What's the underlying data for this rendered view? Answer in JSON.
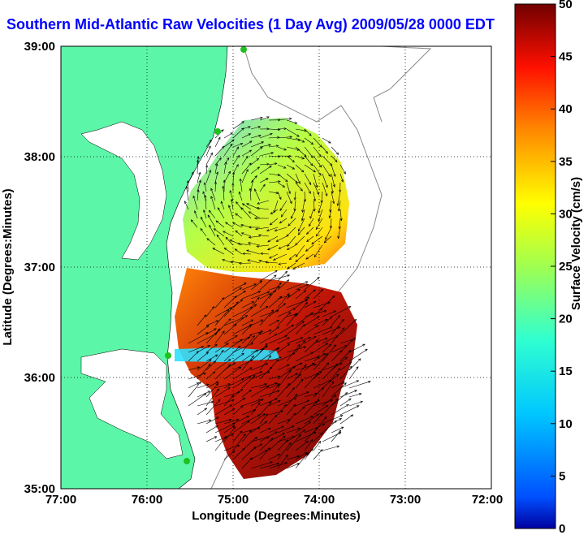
{
  "title": "Southern Mid-Atlantic Raw Velocities (1 Day Avg) 2009/05/28 0000 EDT",
  "map": {
    "xlabel": "Longitude (Degrees:Minutes)",
    "ylabel": "Latitude (Degrees:Minutes)",
    "x_ticks": [
      "77:00",
      "76:00",
      "75:00",
      "74:00",
      "73:00",
      "72:00"
    ],
    "y_ticks": [
      "39:00",
      "38:00",
      "37:00",
      "36:00",
      "35:00"
    ],
    "land_color": "#5cf6a8",
    "grid": "dotted"
  },
  "colorbar": {
    "label": "Surface Velocity (cm/s)",
    "ticks": [
      "50",
      "45",
      "40",
      "35",
      "30",
      "25",
      "20",
      "15",
      "10",
      "5",
      "0"
    ],
    "range": [
      0,
      50
    ],
    "colormap": "jet"
  }
}
